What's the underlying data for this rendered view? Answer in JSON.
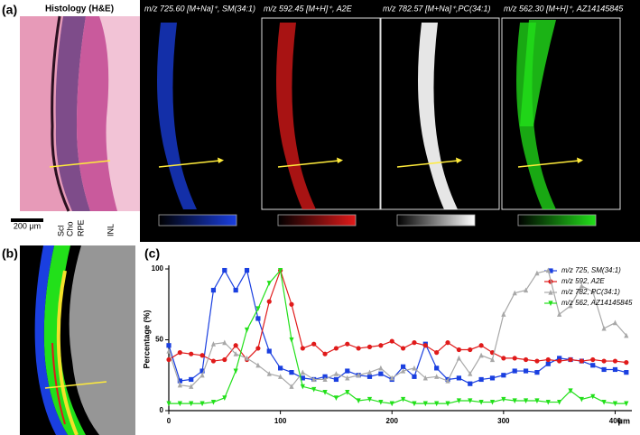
{
  "panel_labels": [
    "(a)",
    "(b)",
    "(c)"
  ],
  "histology": {
    "title": "Histology (H&E)",
    "scale_bar": "200 μm",
    "layers": [
      "Scl",
      "Cho",
      "RPE",
      "INL"
    ]
  },
  "ms_images": [
    "m/z 725.60 [M+Na]⁺, SM(34:1)",
    "m/z 592.45 [M+H]⁺, A2E",
    "m/z 782.57 [M+Na]⁺,PC(34:1)",
    "m/z 562.30 [M+H]⁺, AZ14145845"
  ],
  "chart_data": {
    "type": "line",
    "ylabel": "Percentage (%)",
    "xlabel": "μm",
    "xlim": [
      0,
      415
    ],
    "ylim": [
      0,
      100
    ],
    "xticks": [
      0,
      100,
      200,
      300,
      400
    ],
    "yticks": [
      0,
      50,
      100
    ],
    "x": [
      0,
      10,
      20,
      30,
      40,
      50,
      60,
      70,
      80,
      90,
      100,
      110,
      120,
      130,
      140,
      150,
      160,
      170,
      180,
      190,
      200,
      210,
      220,
      230,
      240,
      250,
      260,
      270,
      280,
      290,
      300,
      310,
      320,
      330,
      340,
      350,
      360,
      370,
      380,
      390,
      400,
      410
    ],
    "series": [
      {
        "name": "m/z 725, SM(34:1)",
        "color": "#1a3fe0",
        "marker": "square",
        "values": [
          46,
          21,
          22,
          28,
          85,
          99,
          85,
          99,
          65,
          42,
          30,
          27,
          23,
          22,
          24,
          22,
          28,
          25,
          24,
          26,
          22,
          31,
          24,
          47,
          30,
          22,
          23,
          19,
          22,
          23,
          25,
          28,
          28,
          27,
          33,
          37,
          36,
          35,
          32,
          29,
          29,
          27
        ]
      },
      {
        "name": "m/z 592, A2E",
        "color": "#e01a1a",
        "marker": "circle",
        "values": [
          36,
          41,
          40,
          39,
          35,
          36,
          46,
          36,
          44,
          77,
          99,
          75,
          44,
          47,
          40,
          44,
          47,
          44,
          45,
          46,
          49,
          44,
          48,
          46,
          41,
          48,
          43,
          43,
          46,
          41,
          37,
          37,
          36,
          35,
          36,
          35,
          36,
          35,
          36,
          35,
          35,
          34
        ]
      },
      {
        "name": "m/z 782, PC(34:1)",
        "color": "#a8a8a8",
        "marker": "triangle",
        "values": [
          42,
          18,
          17,
          25,
          47,
          48,
          40,
          37,
          32,
          26,
          24,
          17,
          27,
          22,
          22,
          26,
          23,
          25,
          27,
          30,
          23,
          28,
          30,
          23,
          24,
          21,
          37,
          26,
          39,
          36,
          68,
          83,
          85,
          97,
          99,
          68,
          74,
          88,
          84,
          58,
          62,
          53
        ]
      },
      {
        "name": "m/z 562, AZ14145845",
        "color": "#22e01a",
        "marker": "down",
        "values": [
          5,
          5,
          5,
          5,
          6,
          9,
          28,
          57,
          72,
          90,
          99,
          50,
          17,
          15,
          13,
          9,
          13,
          7,
          8,
          6,
          5,
          8,
          5,
          5,
          5,
          5,
          7,
          7,
          6,
          6,
          8,
          7,
          7,
          7,
          6,
          6,
          14,
          8,
          10,
          6,
          5,
          5
        ]
      }
    ]
  }
}
